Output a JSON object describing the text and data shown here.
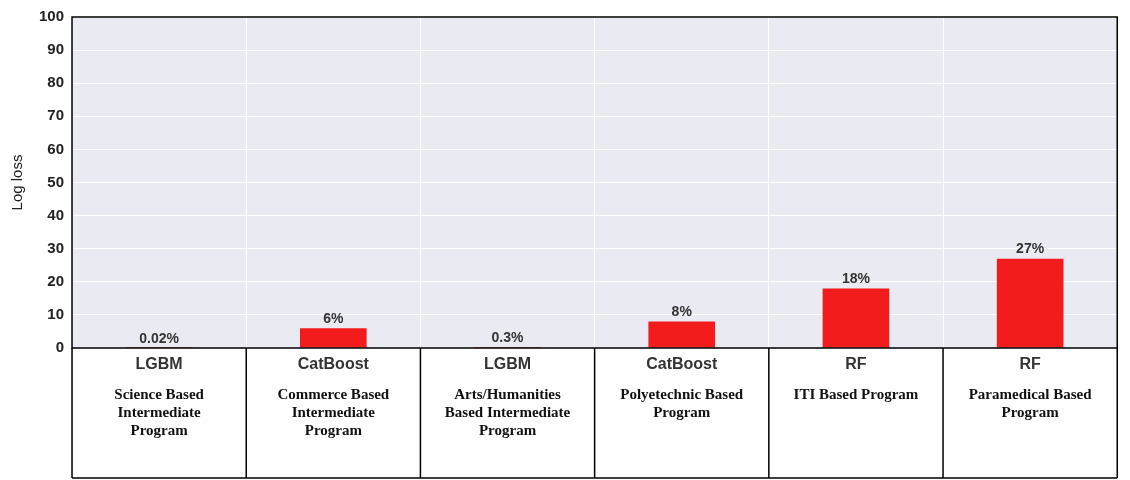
{
  "chart_data": {
    "type": "bar",
    "ylabel": "Log loss",
    "categories": [
      "Science Based Intermediate Program",
      "Commerce Based Intermediate Program",
      "Arts/Humanities Based Intermediate Program",
      "Polyetechnic Based Program",
      "ITI Based Program",
      "Paramedical Based Program"
    ],
    "values": [
      0.02,
      6,
      0.3,
      8,
      18,
      27
    ],
    "value_labels": [
      "0.02%",
      "6%",
      "0.3%",
      "8%",
      "18%",
      "27%"
    ],
    "color": "#f21c1c",
    "ylim": [
      0,
      100
    ],
    "yticks": [
      0,
      10,
      20,
      30,
      40,
      50,
      60,
      70,
      80,
      90,
      100
    ],
    "grid": true,
    "annotations": [
      "LGBM",
      "CatBoost",
      "LGBM",
      "CatBoost",
      "RF",
      "RF"
    ]
  }
}
